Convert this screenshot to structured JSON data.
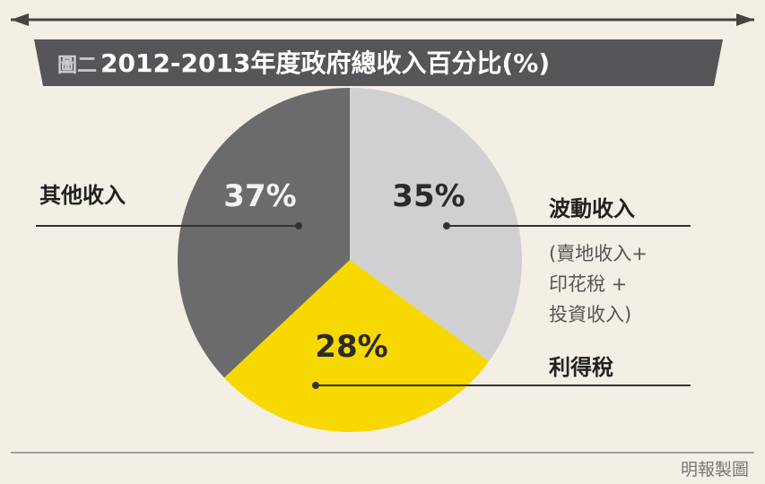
{
  "figure_tag": "圖二",
  "credit": "明報製圖",
  "colors": {
    "background": "#f3efe4",
    "title_band": "#55555a",
    "others": "#6b6b6d",
    "volatile": "#d0d0d2",
    "profits_tax": "#f7d800"
  },
  "chart_data": {
    "type": "pie",
    "title": "2012-2013年度政府總收入百分比(%)",
    "slices": [
      {
        "label": "波動收入",
        "value": 35,
        "display": "35%",
        "note_lines": [
          "(賣地收入+",
          "印花稅 +",
          "投資收入)"
        ]
      },
      {
        "label": "利得稅",
        "value": 28,
        "display": "28%",
        "note_lines": []
      },
      {
        "label": "其他收入",
        "value": 37,
        "display": "37%",
        "note_lines": []
      }
    ]
  }
}
